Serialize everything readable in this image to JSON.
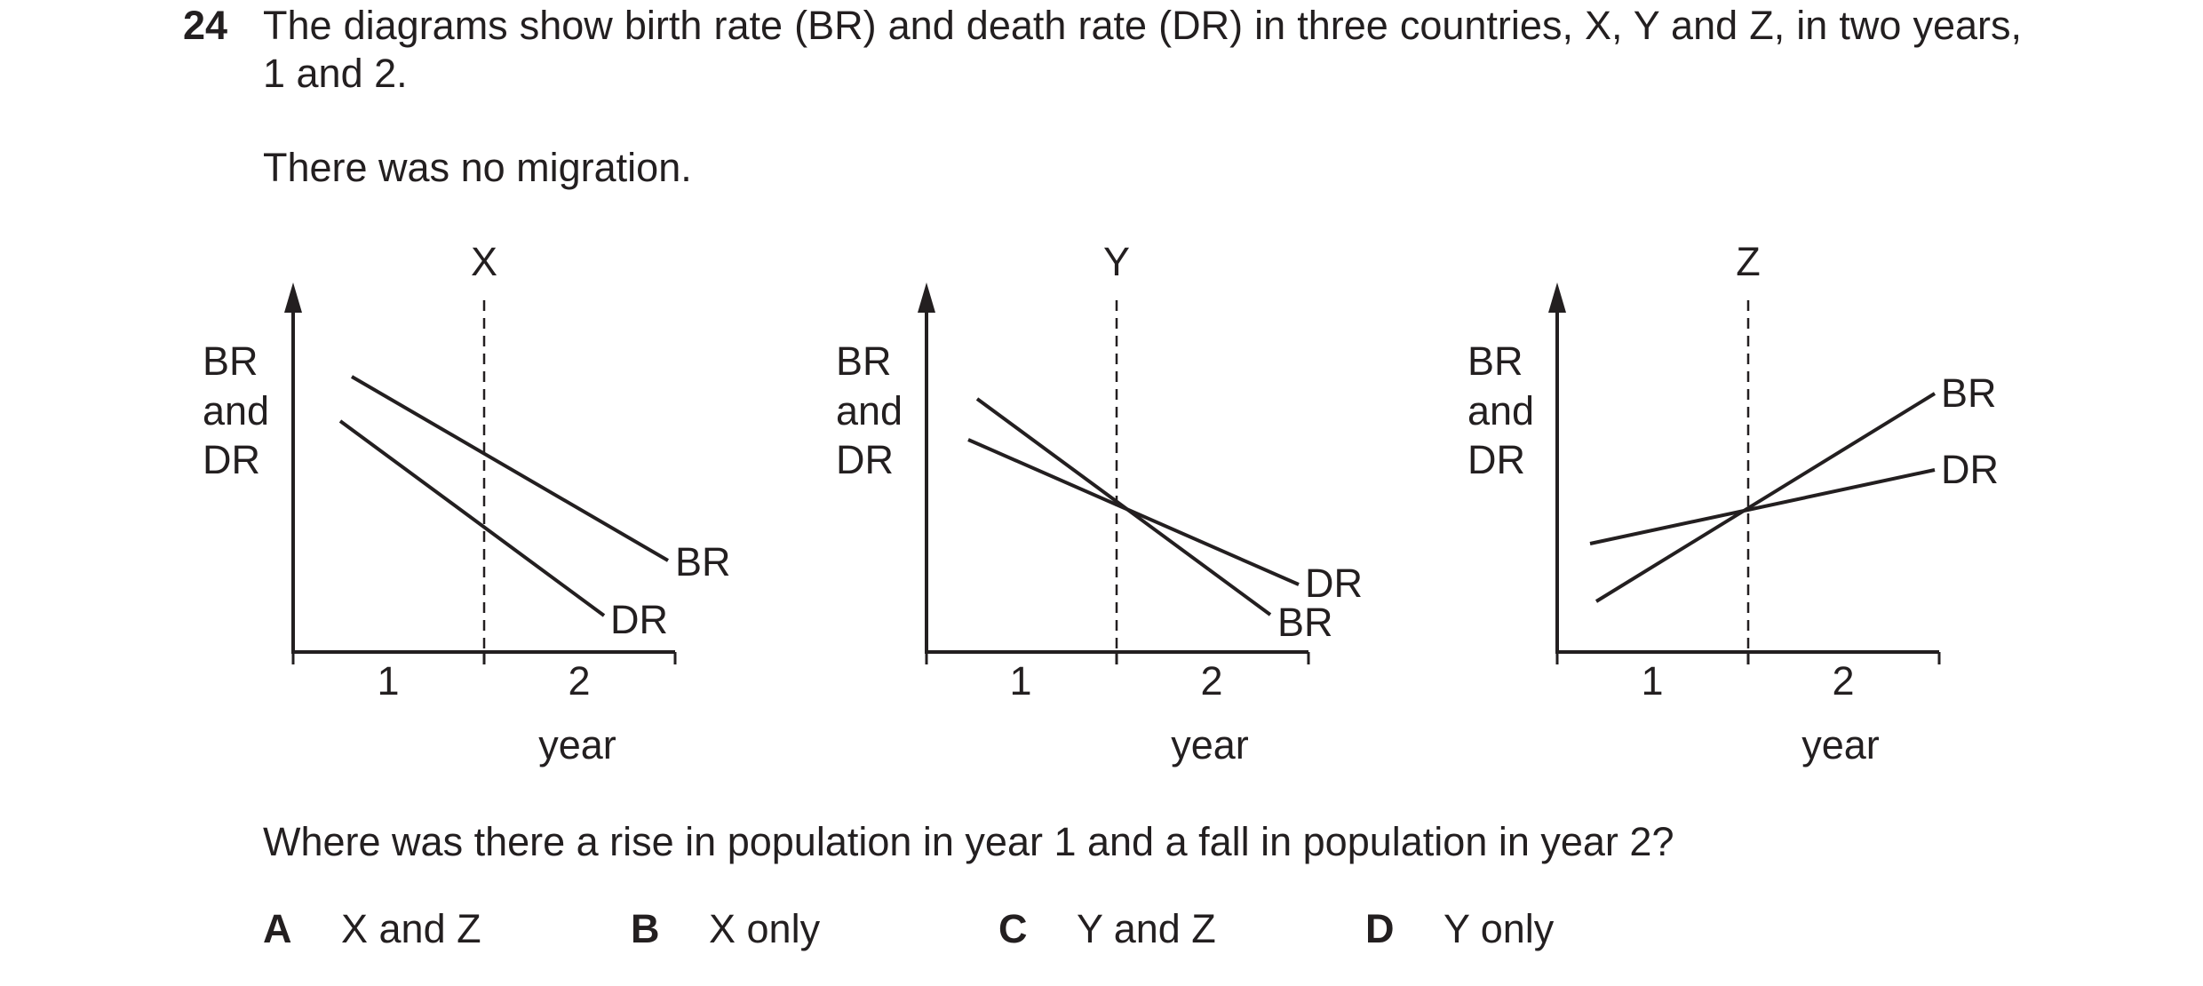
{
  "question": {
    "number": "24",
    "stem": "The diagrams show birth rate (BR) and death rate (DR) in three countries, X, Y and Z, in two years, 1 and 2.",
    "note": "There was no migration.",
    "prompt": "Where was there a rise in population in year 1 and a fall in population in year 2?"
  },
  "diagrams": [
    {
      "title": "X",
      "y_label": [
        "BR",
        "and",
        "DR"
      ],
      "x_label": "year",
      "x_ticks": [
        "1",
        "2"
      ],
      "line_labels": {
        "br": "BR",
        "dr": "DR"
      }
    },
    {
      "title": "Y",
      "y_label": [
        "BR",
        "and",
        "DR"
      ],
      "x_label": "year",
      "x_ticks": [
        "1",
        "2"
      ],
      "line_labels": {
        "br": "BR",
        "dr": "DR"
      }
    },
    {
      "title": "Z",
      "y_label": [
        "BR",
        "and",
        "DR"
      ],
      "x_label": "year",
      "x_ticks": [
        "1",
        "2"
      ],
      "line_labels": {
        "br": "BR",
        "dr": "DR"
      }
    }
  ],
  "options": [
    {
      "letter": "A",
      "text": "X and Z"
    },
    {
      "letter": "B",
      "text": "X only"
    },
    {
      "letter": "C",
      "text": "Y and Z"
    },
    {
      "letter": "D",
      "text": "Y only"
    }
  ],
  "colors": {
    "ink": "#231f20"
  }
}
